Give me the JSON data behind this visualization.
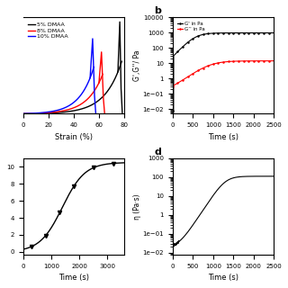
{
  "panel_a": {
    "xlabel": "Strain (%)",
    "xlim": [
      0,
      80
    ],
    "legend": [
      "5% DMAA",
      "8% DMAA",
      "10% DMAA"
    ],
    "legend_colors": [
      "black",
      "red",
      "blue"
    ]
  },
  "panel_b": {
    "label": "b",
    "xlabel": "Time (s)",
    "ylabel": "G',G''’/ Pa",
    "xlim": [
      0,
      2500
    ],
    "ylim": [
      0.005,
      10000
    ],
    "legend": [
      "G' in Pa",
      "G'' in Pa"
    ],
    "legend_colors": [
      "black",
      "red"
    ]
  },
  "panel_c": {
    "xlabel": "Time (s)",
    "xlim": [
      0,
      3600
    ],
    "ylim": [
      -0.3,
      11
    ]
  },
  "panel_d": {
    "label": "d",
    "xlabel": "Time (s)",
    "ylabel": "η (Pa·s)",
    "xlim": [
      0,
      2500
    ],
    "ylim": [
      0.008,
      1000
    ]
  },
  "bg": "#ffffff"
}
